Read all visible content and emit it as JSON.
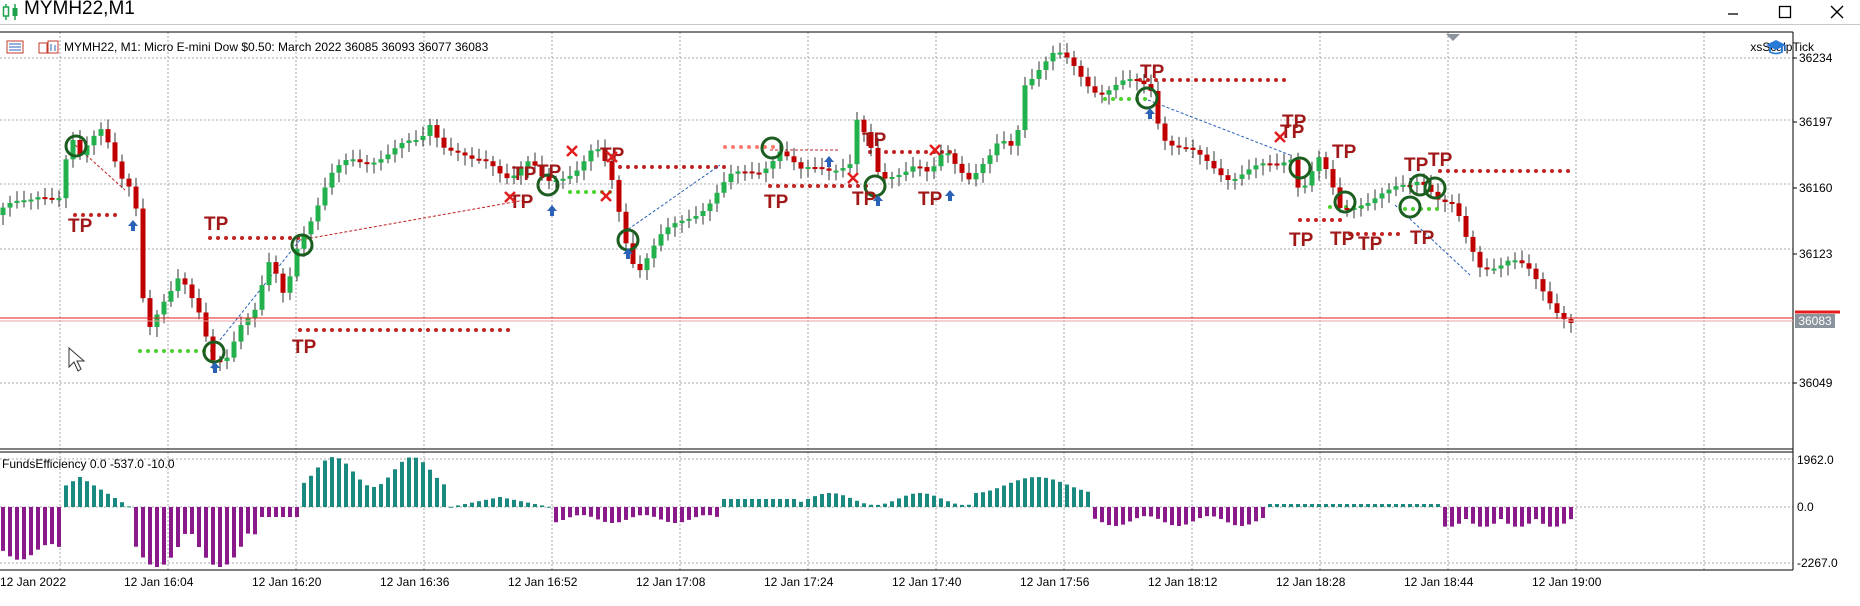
{
  "window": {
    "title": "MYMH22,M1",
    "controls": [
      "minimize",
      "maximize",
      "close"
    ]
  },
  "chart": {
    "info_line": "MYMH22, M1:  Micro E-mini Dow $0.50: March 2022  36085 36093 36077 36083",
    "expert_name": "xsScalpTick",
    "current_price": "36083",
    "tp_label": "TP",
    "price_ticks": [
      "36234",
      "36197",
      "36160",
      "36123",
      "36049"
    ],
    "time_ticks": [
      "12 Jan 2022",
      "12 Jan 16:04",
      "12 Jan 16:20",
      "12 Jan 16:36",
      "12 Jan 16:52",
      "12 Jan 17:08",
      "12 Jan 17:24",
      "12 Jan 17:40",
      "12 Jan 17:56",
      "12 Jan 18:12",
      "12 Jan 18:28",
      "12 Jan 18:44",
      "12 Jan 19:00"
    ]
  },
  "indicator": {
    "label": "FundsEfficiency 0.0 -537.0 -10.0",
    "ticks": [
      "1962.0",
      "0.0",
      "-2267.0"
    ]
  },
  "colors": {
    "bull": "#22b14c",
    "bear": "#c00000",
    "tp": "#a01818",
    "sell_dots": "#c22323",
    "buy_dots": "#4bd12e",
    "hist_pos": "#1a8a80",
    "hist_neg": "#8a1a8a",
    "price_line": "#e21d1d"
  }
}
